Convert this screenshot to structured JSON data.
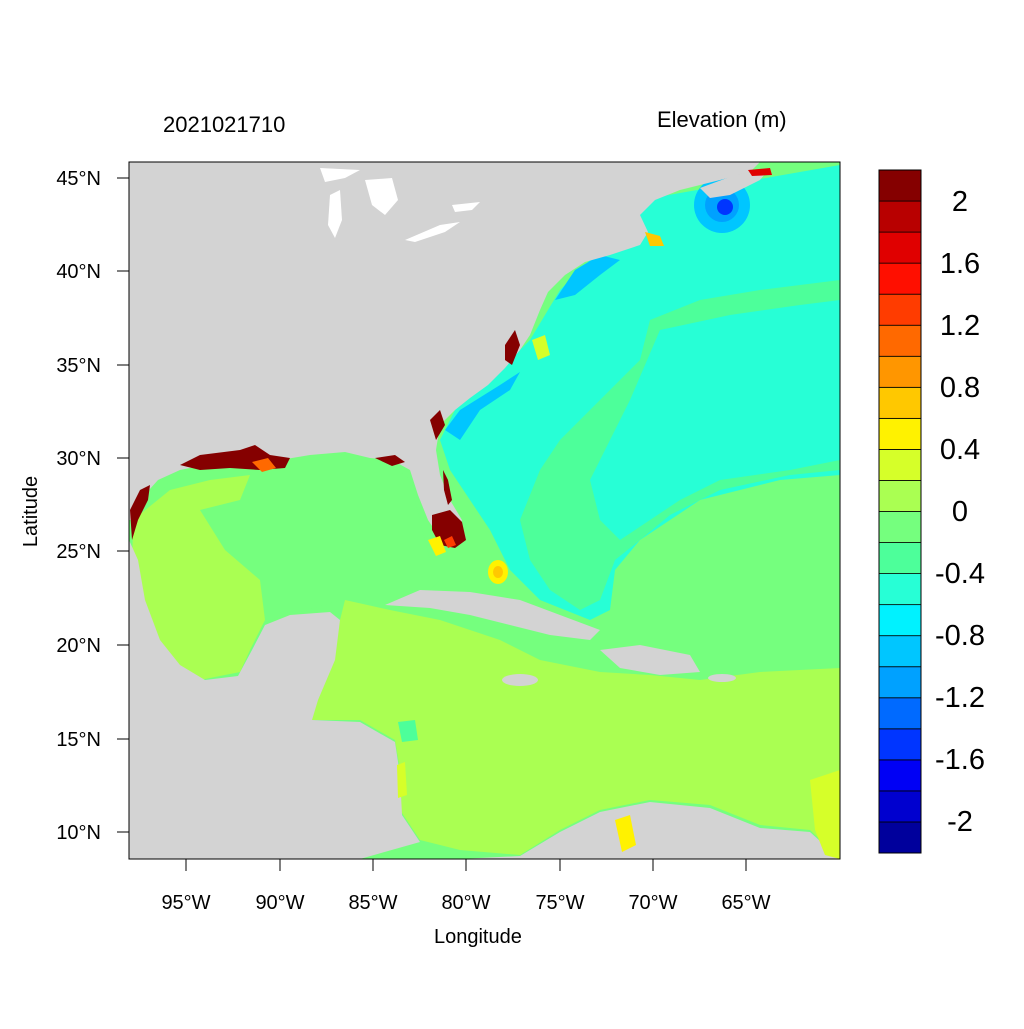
{
  "titles": {
    "left": "2021021710",
    "right": "Elevation (m)"
  },
  "axes": {
    "xlabel": "Longitude",
    "ylabel": "Latitude",
    "xticks": [
      "95°W",
      "90°W",
      "85°W",
      "80°W",
      "75°W",
      "70°W",
      "65°W"
    ],
    "yticks": [
      "45°N",
      "40°N",
      "35°N",
      "30°N",
      "25°N",
      "20°N",
      "15°N",
      "10°N"
    ]
  },
  "colorbar": {
    "levels": [
      {
        "color": "#00009c"
      },
      {
        "color": "#0000cf"
      },
      {
        "color": "#0000f5"
      },
      {
        "color": "#0035ff"
      },
      {
        "color": "#006aff"
      },
      {
        "color": "#00a1ff"
      },
      {
        "color": "#00c6ff"
      },
      {
        "color": "#00f2ff"
      },
      {
        "color": "#27ffd6"
      },
      {
        "color": "#4dff9a"
      },
      {
        "color": "#75ff7e"
      },
      {
        "color": "#aaff52"
      },
      {
        "color": "#d6ff29"
      },
      {
        "color": "#fff200"
      },
      {
        "color": "#ffc800"
      },
      {
        "color": "#ff9600"
      },
      {
        "color": "#ff6900"
      },
      {
        "color": "#ff3c00"
      },
      {
        "color": "#ff0f00"
      },
      {
        "color": "#e00000"
      },
      {
        "color": "#b80000"
      },
      {
        "color": "#850000"
      }
    ],
    "labels": [
      "2",
      "1.6",
      "1.2",
      "0.8",
      "0.4",
      "0",
      "-0.4",
      "-0.8",
      "-1.2",
      "-1.6",
      "-2"
    ]
  },
  "colors": {
    "land": "#d3d3d3",
    "open_ocean": "#75ff7e",
    "atlantic_shelf": "#4dff9a",
    "caribbean": "#aaff52",
    "surge": "#850000"
  }
}
